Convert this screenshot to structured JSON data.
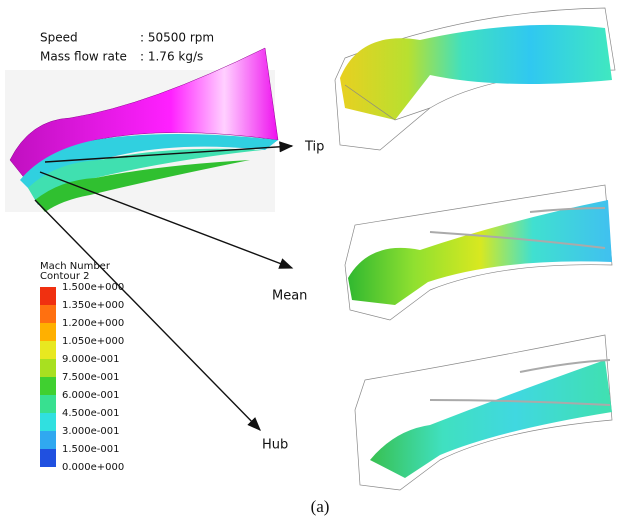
{
  "conditions": {
    "speed_label": "Speed",
    "speed_value": ": 50500 rpm",
    "mass_flow_label": "Mass flow rate",
    "mass_flow_value": ": 1.76 kg/s"
  },
  "legend": {
    "title": "Mach Number",
    "subtitle": "Contour 2",
    "labels": [
      "1.500e+000",
      "1.350e+000",
      "1.200e+000",
      "1.050e+000",
      "9.000e-001",
      "7.500e-001",
      "6.000e-001",
      "4.500e-001",
      "3.000e-001",
      "1.500e-001",
      "0.000e+000"
    ]
  },
  "sections": {
    "tip": "Tip",
    "mean": "Mean",
    "hub": "Hub"
  },
  "caption": "(a)"
}
